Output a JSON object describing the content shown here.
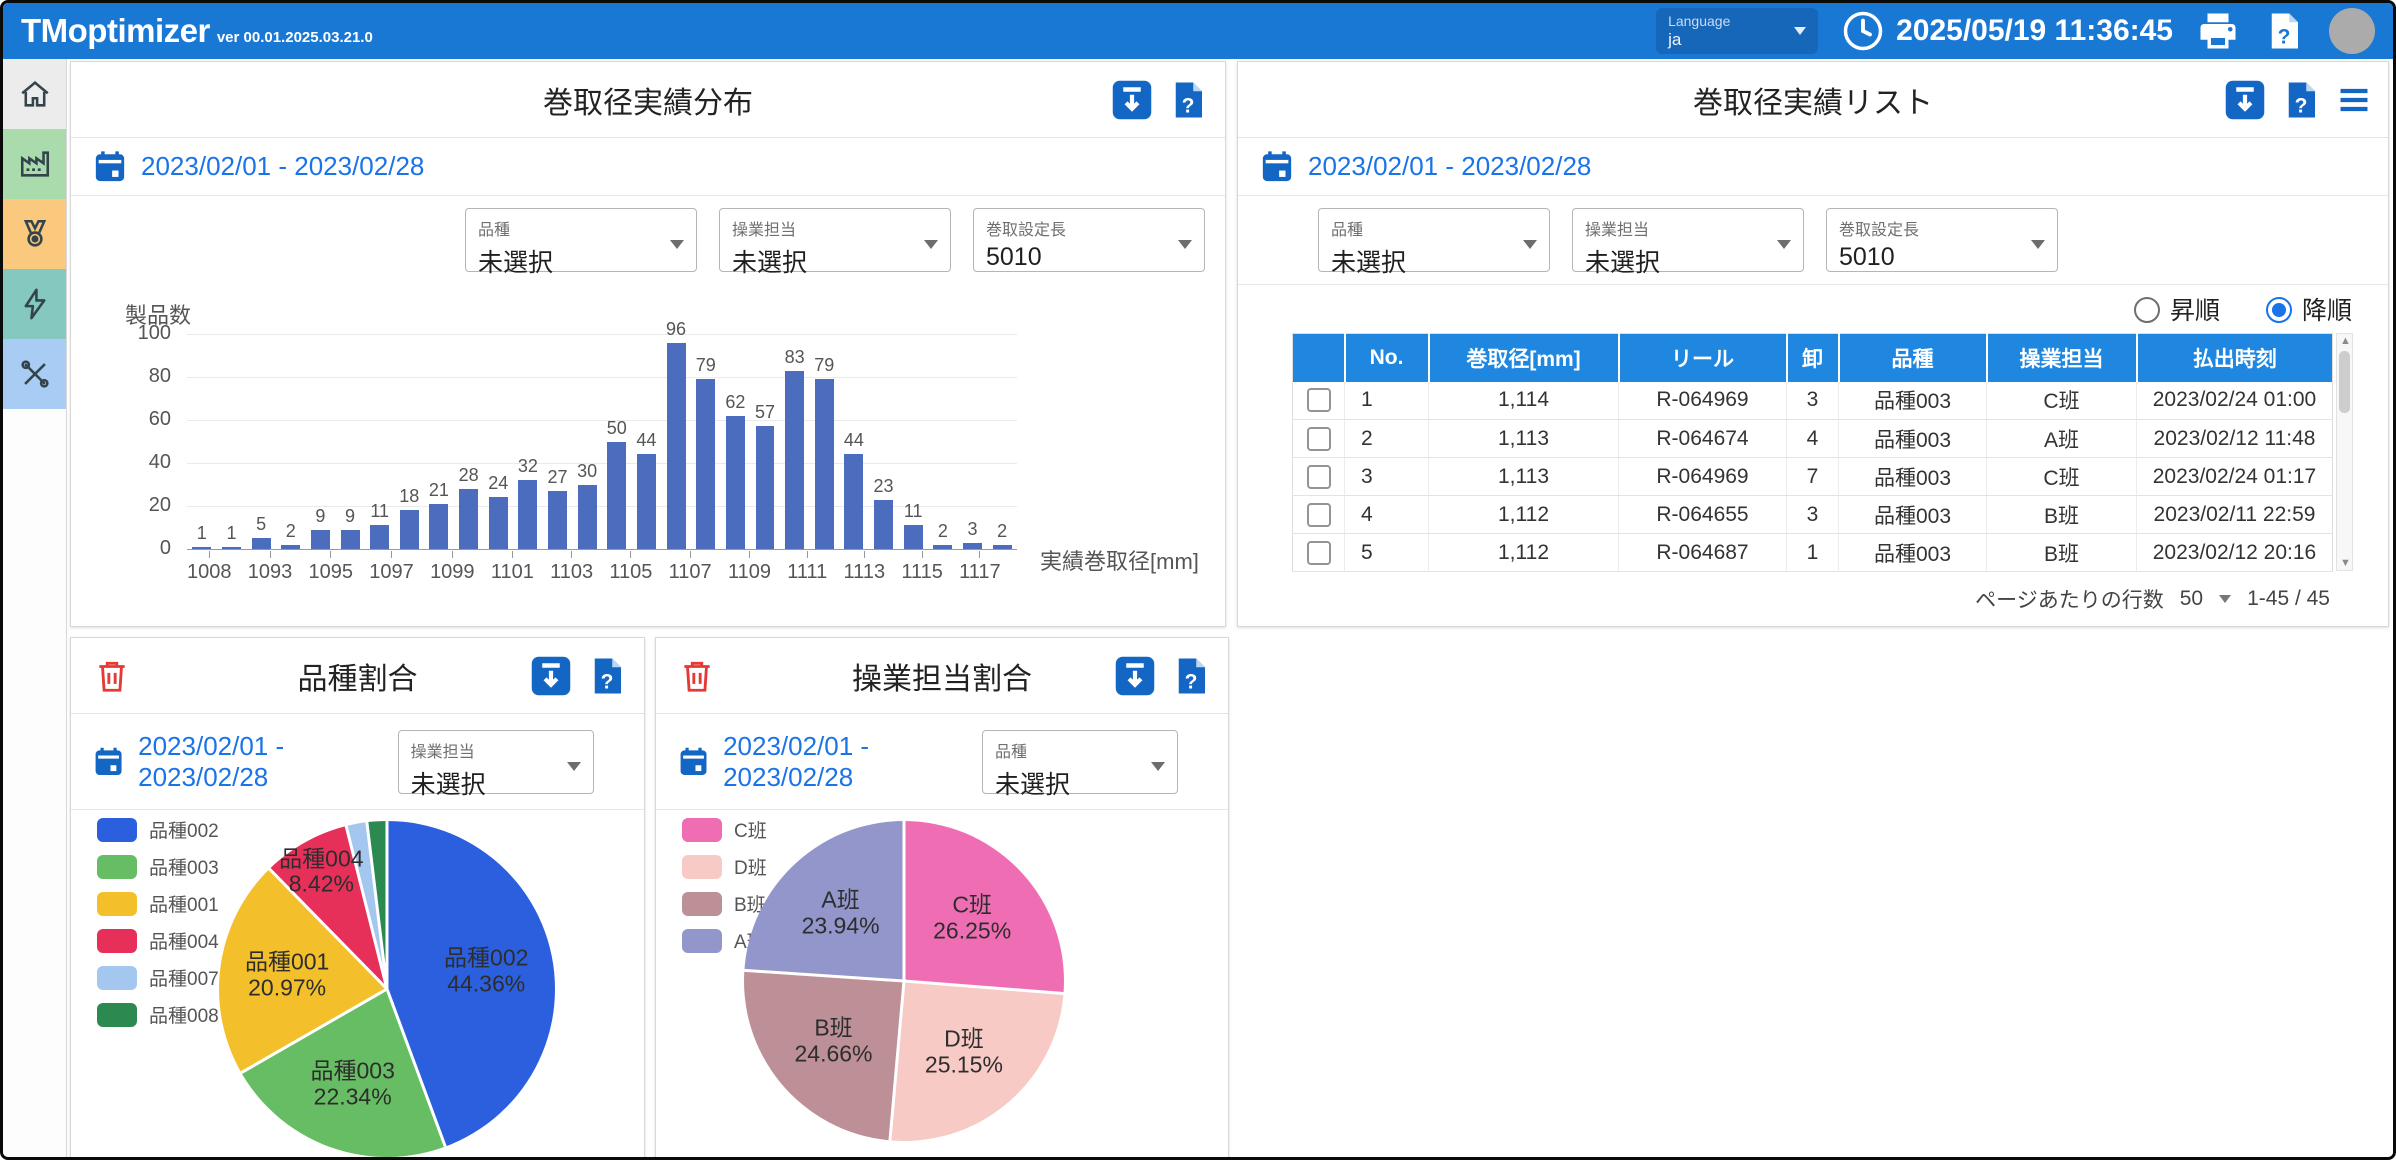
{
  "window": {
    "app_title": "TMoptimizer",
    "version": "ver 00.01.2025.03.21.0",
    "language_label": "Language",
    "language_value": "ja",
    "datetime": "2025/05/19 11:36:45"
  },
  "sidebar": {
    "icons": [
      "home",
      "factory",
      "medal",
      "bolt",
      "tools"
    ]
  },
  "filters": {
    "kind": {
      "label": "品種",
      "value": "未選択"
    },
    "operator": {
      "label": "操業担当",
      "value": "未選択"
    },
    "length": {
      "label": "巻取設定長",
      "value": "5010"
    }
  },
  "dist_panel": {
    "title": "巻取径実績分布",
    "date_range": "2023/02/01 - 2023/02/28"
  },
  "list_panel": {
    "title": "巻取径実績リスト",
    "date_range": "2023/02/01 - 2023/02/28",
    "sort_asc": "昇順",
    "sort_desc": "降順",
    "columns": [
      "No.",
      "巻取径[mm]",
      "リール",
      "卸",
      "品種",
      "操業担当",
      "払出時刻"
    ],
    "rows": [
      [
        "1",
        "1,114",
        "R-064969",
        "3",
        "品種003",
        "C班",
        "2023/02/24 01:00"
      ],
      [
        "2",
        "1,113",
        "R-064674",
        "4",
        "品種003",
        "A班",
        "2023/02/12 11:48"
      ],
      [
        "3",
        "1,113",
        "R-064969",
        "7",
        "品種003",
        "C班",
        "2023/02/24 01:17"
      ],
      [
        "4",
        "1,112",
        "R-064655",
        "3",
        "品種003",
        "B班",
        "2023/02/11 22:59"
      ],
      [
        "5",
        "1,112",
        "R-064687",
        "1",
        "品種003",
        "B班",
        "2023/02/12 20:16"
      ]
    ],
    "pagination": {
      "label": "ページあたりの行数",
      "value": "50",
      "range": "1-45 / 45"
    }
  },
  "kind_panel": {
    "title": "品種割合",
    "date_range": "2023/02/01 - 2023/02/28",
    "filter_label": "操業担当",
    "filter_value": "未選択"
  },
  "op_panel": {
    "title": "操業担当割合",
    "date_range": "2023/02/01 - 2023/02/28",
    "filter_label": "品種",
    "filter_value": "未選択"
  },
  "chart_data": [
    {
      "type": "bar",
      "title": "巻取径実績分布",
      "ylabel": "製品数",
      "xlabel": "実績巻取径[mm]",
      "ylim": [
        0,
        100
      ],
      "yticks": [
        0,
        20,
        40,
        60,
        80,
        100
      ],
      "values": [
        1,
        1,
        5,
        2,
        9,
        9,
        11,
        18,
        21,
        28,
        24,
        32,
        27,
        30,
        50,
        44,
        96,
        79,
        62,
        57,
        83,
        79,
        44,
        23,
        11,
        2,
        3,
        2
      ],
      "x_tick_labels": [
        "1008",
        "1093",
        "1095",
        "1097",
        "1099",
        "1101",
        "1103",
        "1105",
        "1107",
        "1109",
        "1111",
        "1113",
        "1115",
        "1117"
      ],
      "bar_color": "#4c6cbe",
      "grid": true
    },
    {
      "type": "pie",
      "title": "品種割合",
      "labels": [
        "品種002",
        "品種003",
        "品種001",
        "品種004",
        "品種007",
        "品種008"
      ],
      "values": [
        44.36,
        22.34,
        20.97,
        8.42,
        2.0,
        1.91
      ],
      "pct_labels": [
        "44.36%",
        "22.34%",
        "20.97%",
        "8.42%",
        "",
        ""
      ],
      "colors": [
        "#2b5fdd",
        "#67bd63",
        "#f3c02c",
        "#e73059",
        "#a4c7ef",
        "#2c8a50"
      ],
      "legend_position": "left"
    },
    {
      "type": "pie",
      "title": "操業担当割合",
      "labels": [
        "C班",
        "D班",
        "B班",
        "A班"
      ],
      "values": [
        26.25,
        25.15,
        24.66,
        23.94
      ],
      "pct_labels": [
        "26.25%",
        "25.15%",
        "24.66%",
        "23.94%"
      ],
      "colors": [
        "#ef6eb3",
        "#f7cac5",
        "#bd9097",
        "#9396ca"
      ],
      "legend_position": "left"
    }
  ]
}
